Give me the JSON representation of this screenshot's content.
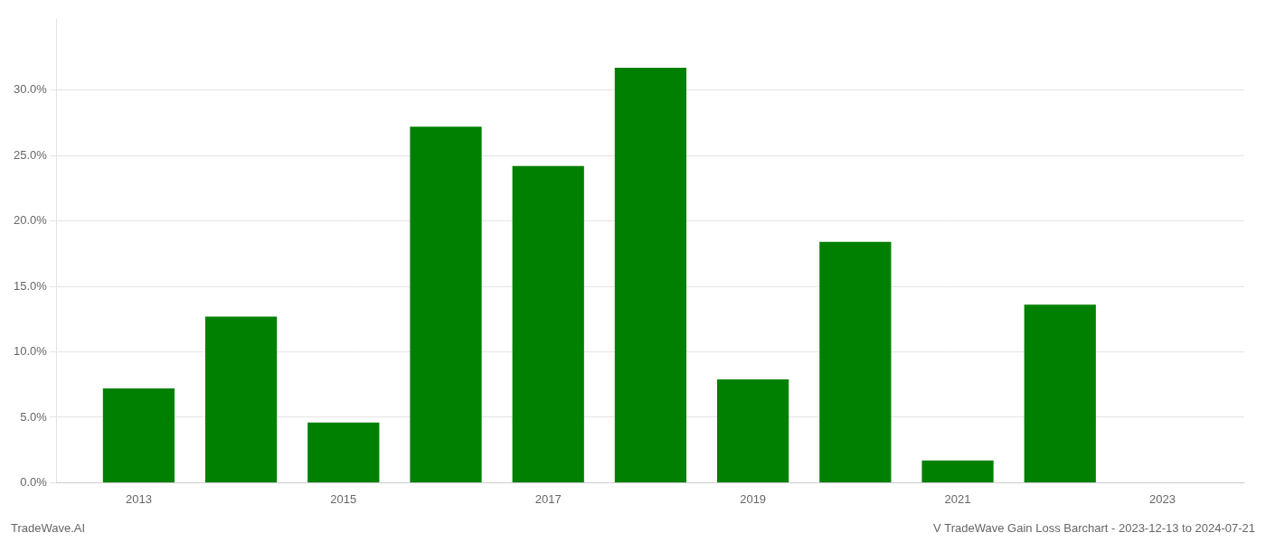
{
  "chart_data": {
    "type": "bar",
    "x": [
      2013,
      2014,
      2015,
      2016,
      2017,
      2018,
      2019,
      2020,
      2021,
      2022
    ],
    "values": [
      0.072,
      0.127,
      0.046,
      0.272,
      0.242,
      0.317,
      0.079,
      0.184,
      0.017,
      0.136
    ],
    "color": "#008000",
    "xlim": [
      2012.2,
      2023.8
    ],
    "xticks": [
      2013,
      2015,
      2017,
      2019,
      2021,
      2023
    ],
    "ylim": [
      0.0,
      0.355
    ],
    "yticks": [
      {
        "value": 0.0,
        "label": "0.0%"
      },
      {
        "value": 0.05,
        "label": "5.0%"
      },
      {
        "value": 0.1,
        "label": "10.0%"
      },
      {
        "value": 0.15,
        "label": "15.0%"
      },
      {
        "value": 0.2,
        "label": "20.0%"
      },
      {
        "value": 0.25,
        "label": "25.0%"
      },
      {
        "value": 0.3,
        "label": "30.0%"
      }
    ],
    "grid": "y",
    "annotations": [
      "TradeWave.AI",
      "V TradeWave Gain Loss Barchart - 2023-12-13 to 2024-07-21"
    ]
  }
}
